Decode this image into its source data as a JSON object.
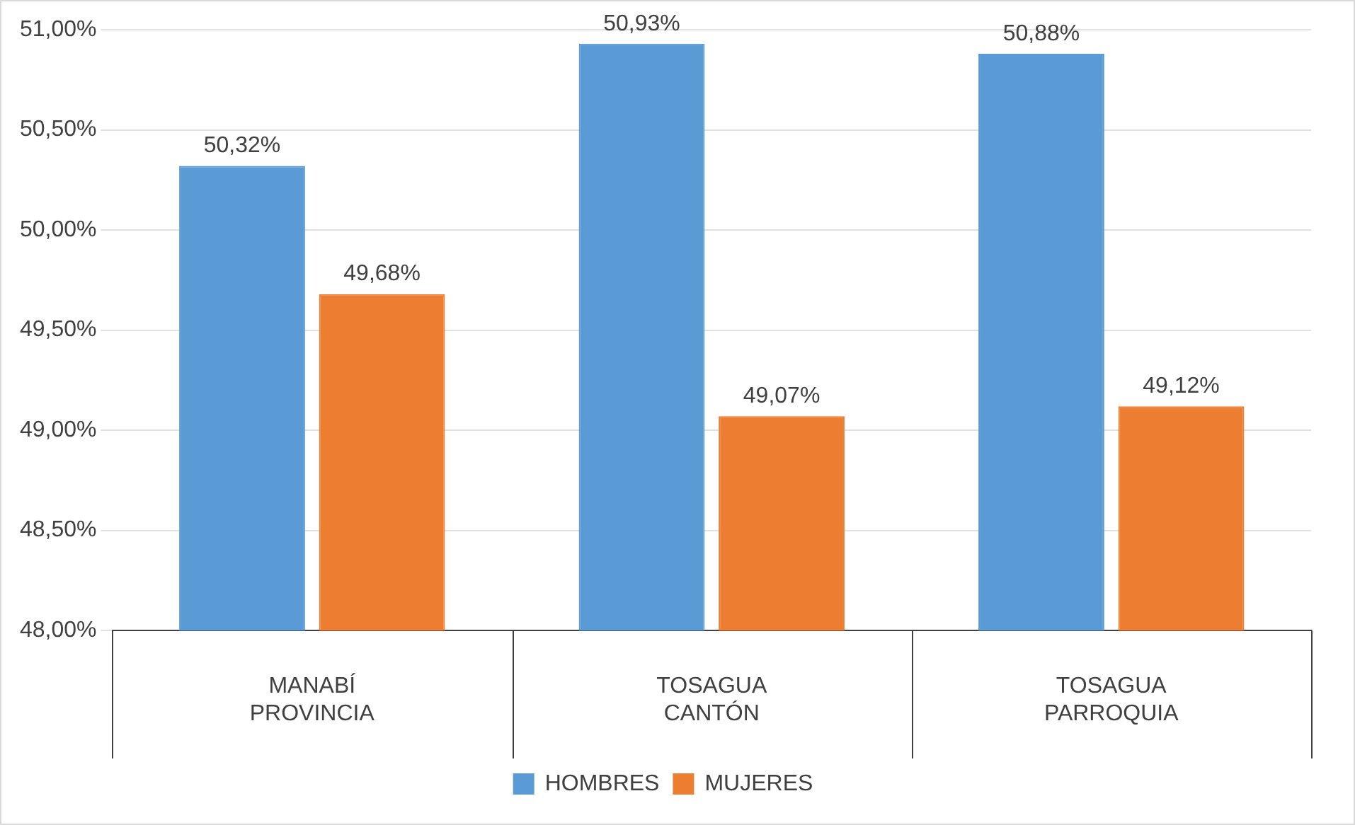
{
  "chart_data": {
    "type": "bar",
    "categories": [
      "MANABÍ\nPROVINCIA",
      "TOSAGUA\nCANTÓN",
      "TOSAGUA\nPARROQUIA"
    ],
    "series": [
      {
        "name": "HOMBRES",
        "color": "#5b9bd5",
        "values": [
          50.32,
          50.93,
          50.88
        ],
        "value_labels": [
          "50,32%",
          "50,93%",
          "50,88%"
        ]
      },
      {
        "name": "MUJERES",
        "color": "#ed7d31",
        "values": [
          49.68,
          49.07,
          49.12
        ],
        "value_labels": [
          "49,68%",
          "49,07%",
          "49,12%"
        ]
      }
    ],
    "ylim": [
      48,
      51
    ],
    "yticks": [
      {
        "value": 48,
        "label": "48,00%"
      },
      {
        "value": 48.5,
        "label": "48,50%"
      },
      {
        "value": 49,
        "label": "49,00%"
      },
      {
        "value": 49.5,
        "label": "49,50%"
      },
      {
        "value": 50,
        "label": "50,00%"
      },
      {
        "value": 50.5,
        "label": "50,50%"
      },
      {
        "value": 51,
        "label": "51,00%"
      }
    ],
    "grid": "y",
    "legend": "bottom"
  }
}
